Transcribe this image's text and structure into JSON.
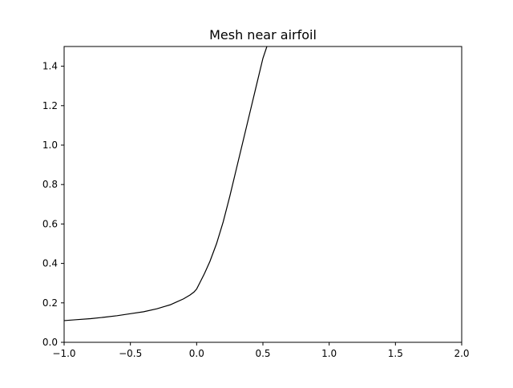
{
  "chart_data": {
    "type": "line",
    "title": "Mesh near airfoil",
    "xlabel": "",
    "ylabel": "",
    "xlim": [
      -1.0,
      2.0
    ],
    "ylim": [
      0.0,
      1.5
    ],
    "x_ticks": [
      -1.0,
      -0.5,
      0.0,
      0.5,
      1.0,
      1.5,
      2.0
    ],
    "x_tick_labels": [
      "−1.0",
      "−0.5",
      "0.0",
      "0.5",
      "1.0",
      "1.5",
      "2.0"
    ],
    "y_ticks": [
      0.0,
      0.2,
      0.4,
      0.6,
      0.8,
      1.0,
      1.2,
      1.4
    ],
    "y_tick_labels": [
      "0.0",
      "0.2",
      "0.4",
      "0.6",
      "0.8",
      "1.0",
      "1.2",
      "1.4"
    ],
    "grid": false,
    "legend": "none",
    "colors": {
      "line": "#000000",
      "axes": "#000000",
      "background": "#ffffff"
    },
    "series": [
      {
        "x": [
          -1.0,
          -0.9,
          -0.8,
          -0.7,
          -0.6,
          -0.5,
          -0.4,
          -0.3,
          -0.25,
          -0.2,
          -0.15,
          -0.1,
          -0.05,
          -0.02,
          0.0,
          0.03,
          0.06,
          0.1,
          0.15,
          0.2,
          0.25,
          0.3,
          0.35,
          0.4,
          0.45,
          0.5,
          0.53
        ],
        "y": [
          0.11,
          0.115,
          0.12,
          0.127,
          0.135,
          0.145,
          0.155,
          0.17,
          0.18,
          0.19,
          0.205,
          0.22,
          0.24,
          0.255,
          0.27,
          0.31,
          0.35,
          0.41,
          0.5,
          0.61,
          0.74,
          0.88,
          1.02,
          1.16,
          1.3,
          1.44,
          1.5
        ]
      }
    ]
  }
}
